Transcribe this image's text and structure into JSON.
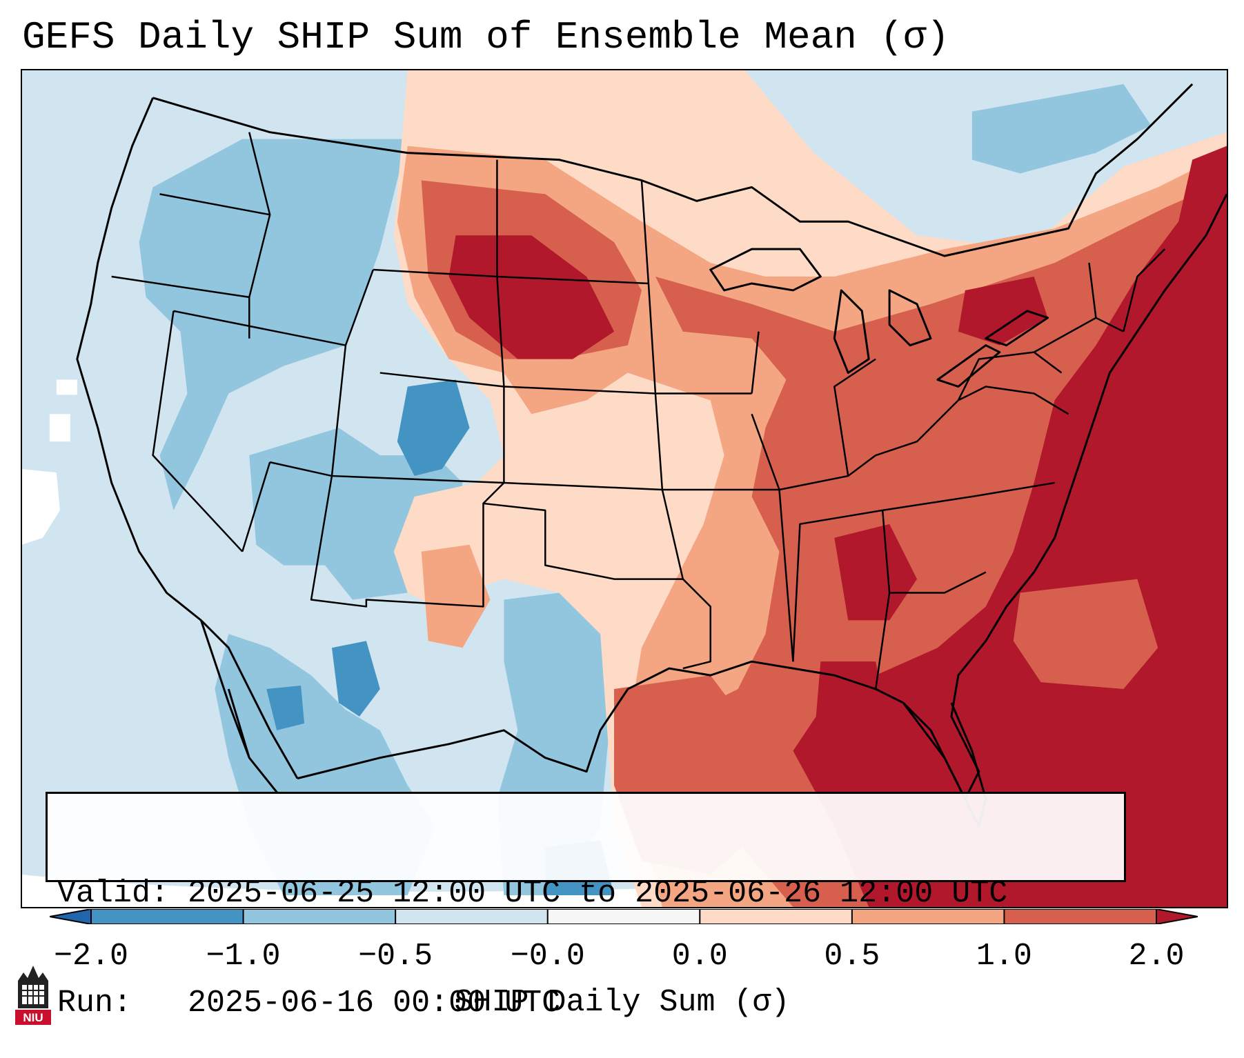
{
  "title": "GEFS Daily SHIP Sum of Ensemble Mean (σ)",
  "info": {
    "valid_line": "Valid: 2025-06-25 12:00 UTC to 2025-06-26 12:00 UTC",
    "run_line": "Run:   2025-06-16 00:00 UTC"
  },
  "colorbar": {
    "label": "SHIP Daily Sum (σ)",
    "ticks": [
      "−2.0",
      "−1.0",
      "−0.5",
      "−0.0",
      "0.0",
      "0.5",
      "1.0",
      "2.0"
    ],
    "bins": [
      {
        "range": "< -2.0",
        "color": "#2166ac"
      },
      {
        "range": "-2.0 to -1.0",
        "color": "#4393c3"
      },
      {
        "range": "-1.0 to -0.5",
        "color": "#92c5de"
      },
      {
        "range": "-0.5 to -0.0",
        "color": "#d1e5f0"
      },
      {
        "range": "-0.0 to 0.0",
        "color": "#f7f7f7"
      },
      {
        "range": "0.0 to 0.5",
        "color": "#fddbc7"
      },
      {
        "range": "0.5 to 1.0",
        "color": "#f4a582"
      },
      {
        "range": "1.0 to 2.0",
        "color": "#d6604d"
      },
      {
        "range": "> 2.0",
        "color": "#b2182b"
      }
    ]
  },
  "logo": {
    "text": "NIU",
    "color": "#c8102e"
  }
}
